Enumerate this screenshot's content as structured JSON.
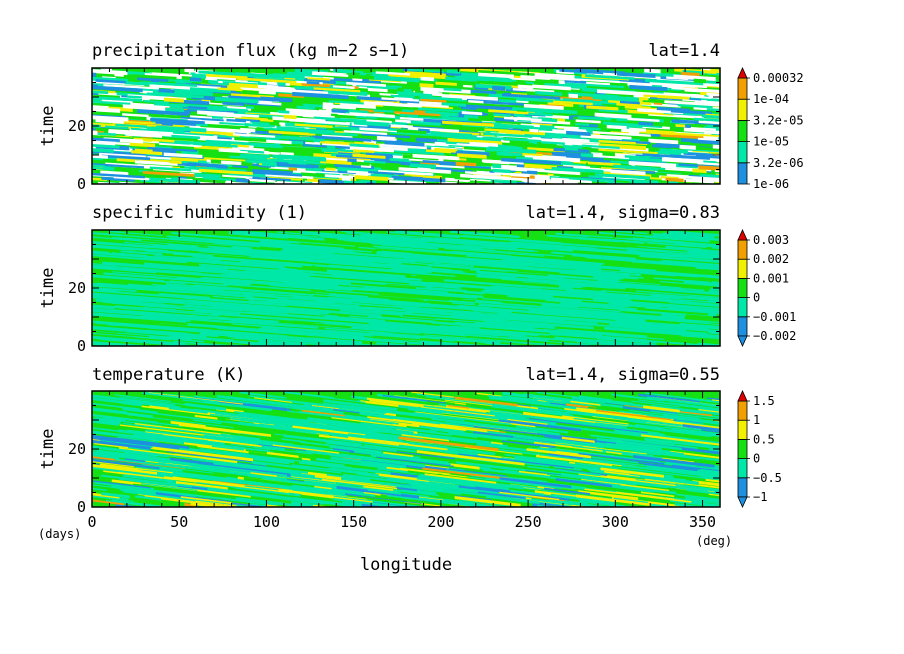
{
  "colors": {
    "blue": "#1e90e0",
    "cyan": "#00e8a8",
    "green": "#14e014",
    "yellow": "#f0f000",
    "orange": "#f0a000",
    "red": "#e00000",
    "white": "#ffffff",
    "frame": "#000000"
  },
  "chart_data": [
    {
      "type": "heatmap",
      "title": "precipitation flux (kg m−2 s−1)",
      "subtitle": "lat=1.4",
      "ylabel": "time",
      "xlim": [
        0,
        360
      ],
      "ylim": [
        0,
        40
      ],
      "yticks": [
        0,
        20
      ],
      "colorbar": {
        "labels": [
          "1e-06",
          "3.2e-06",
          "1e-05",
          "3.2e-05",
          "1e-04",
          "0.00032"
        ],
        "colors": [
          "blue",
          "cyan",
          "green",
          "yellow",
          "orange"
        ],
        "extend_min": false,
        "extend_max": true
      }
    },
    {
      "type": "heatmap",
      "title": "specific humidity (1)",
      "subtitle": "lat=1.4, sigma=0.83",
      "ylabel": "time",
      "xlim": [
        0,
        360
      ],
      "ylim": [
        0,
        40
      ],
      "yticks": [
        0,
        20
      ],
      "colorbar": {
        "labels": [
          "−0.002",
          "−0.001",
          "0",
          "0.001",
          "0.002",
          "0.003"
        ],
        "colors": [
          "blue",
          "cyan",
          "green",
          "yellow",
          "orange"
        ],
        "extend_min": true,
        "extend_max": true
      }
    },
    {
      "type": "heatmap",
      "title": "temperature (K)",
      "subtitle": "lat=1.4, sigma=0.55",
      "ylabel": "time",
      "xlabel": "longitude",
      "xlim": [
        0,
        360
      ],
      "ylim": [
        0,
        40
      ],
      "yticks": [
        0,
        20
      ],
      "xticks": [
        0,
        50,
        100,
        150,
        200,
        250,
        300,
        350
      ],
      "x_unit": "(deg)",
      "y_unit": "(days)",
      "colorbar": {
        "labels": [
          "−1",
          "−0.5",
          "0",
          "0.5",
          "1",
          "1.5"
        ],
        "colors": [
          "blue",
          "cyan",
          "green",
          "yellow",
          "orange"
        ],
        "extend_min": true,
        "extend_max": true
      }
    }
  ]
}
